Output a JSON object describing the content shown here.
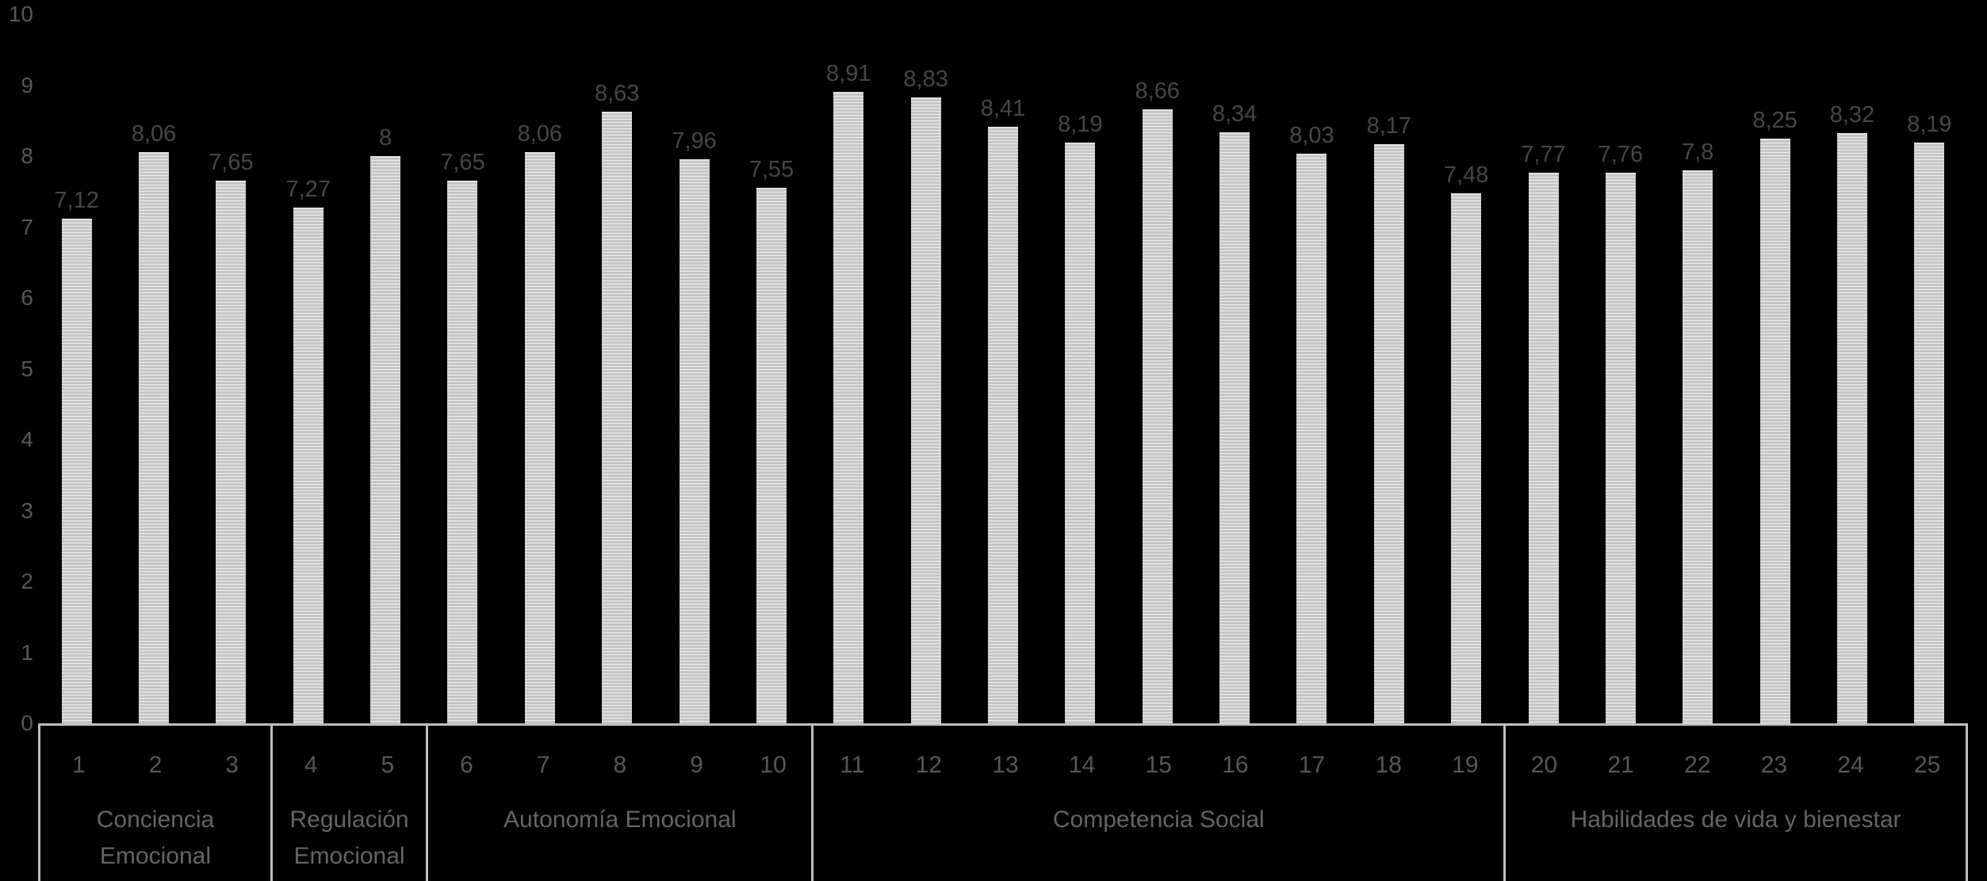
{
  "chart_data": {
    "type": "bar",
    "title": "",
    "xlabel": "",
    "ylabel": "",
    "categories": [
      "1",
      "2",
      "3",
      "4",
      "5",
      "6",
      "7",
      "8",
      "9",
      "10",
      "11",
      "12",
      "13",
      "14",
      "15",
      "16",
      "17",
      "18",
      "19",
      "20",
      "21",
      "22",
      "23",
      "24",
      "25"
    ],
    "values": [
      7.12,
      8.06,
      7.65,
      7.27,
      8.0,
      7.65,
      8.06,
      8.63,
      7.96,
      7.55,
      8.91,
      8.83,
      8.41,
      8.19,
      8.66,
      8.34,
      8.03,
      8.17,
      7.48,
      7.77,
      7.76,
      7.8,
      8.25,
      8.32,
      8.19
    ],
    "value_labels": [
      "7,12",
      "8,06",
      "7,65",
      "7,27",
      "8",
      "7,65",
      "8,06",
      "8,63",
      "7,96",
      "7,55",
      "8,91",
      "8,83",
      "8,41",
      "8,19",
      "8,66",
      "8,34",
      "8,03",
      "8,17",
      "7,48",
      "7,77",
      "7,76",
      "7,8",
      "8,25",
      "8,32",
      "8,19"
    ],
    "groups": [
      {
        "label": "Conciencia Emocional",
        "label_lines": [
          "Conciencia",
          "Emocional"
        ],
        "start": 1,
        "end": 3
      },
      {
        "label": "Regulación Emocional",
        "label_lines": [
          "Regulación",
          "Emocional"
        ],
        "start": 4,
        "end": 5
      },
      {
        "label": "Autonomía Emocional",
        "label_lines": [
          "Autonomía Emocional"
        ],
        "start": 6,
        "end": 10
      },
      {
        "label": "Competencia Social",
        "label_lines": [
          "Competencia Social"
        ],
        "start": 11,
        "end": 19
      },
      {
        "label": "Habilidades de vida y bienestar",
        "label_lines": [
          "Habilidades de vida y bienestar"
        ],
        "start": 20,
        "end": 25
      }
    ],
    "y_axis": {
      "min": 0,
      "max": 10,
      "tick_step": 1,
      "tick_labels": [
        "0",
        "1",
        "2",
        "3",
        "4",
        "5",
        "6",
        "7",
        "8",
        "9",
        "10"
      ]
    },
    "grid": false,
    "legend_position": "none"
  },
  "colors": {
    "background": "#000000",
    "bar_fill": "#c6c6c6",
    "bar_stripe": "#eeeeee",
    "bar_cap": "#e4e4e4",
    "value_label": "#474747",
    "axis_label": "#575757",
    "category_label": "#656565",
    "border": "#bfbfbf"
  }
}
